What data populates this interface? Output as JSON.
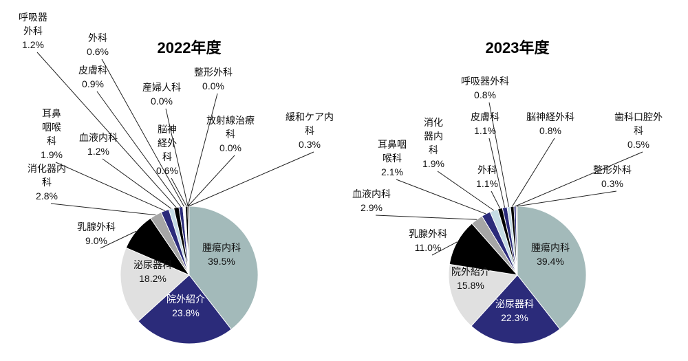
{
  "chart_data": [
    {
      "type": "pie",
      "title": "2022年度",
      "categories": [
        "腫瘍内科",
        "院外紹介",
        "泌尿器科",
        "乳腺外科",
        "消化器内科",
        "耳鼻咽喉科",
        "血液内科",
        "呼吸器外科",
        "皮膚科",
        "外科",
        "脳神経外科",
        "産婦人科",
        "整形外科",
        "放射線治療科",
        "緩和ケア内科"
      ],
      "values": [
        39.5,
        23.8,
        18.2,
        9.0,
        2.8,
        1.9,
        1.2,
        1.2,
        0.9,
        0.6,
        0.6,
        0.0,
        0.0,
        0.0,
        0.3
      ],
      "value_labels": [
        "39.5%",
        "23.8%",
        "18.2%",
        "9.0%",
        "2.8%",
        "1.9%",
        "1.2%",
        "1.2%",
        "0.9%",
        "0.6%",
        "0.6%",
        "0.0%",
        "0.0%",
        "0.0%",
        "0.3%"
      ],
      "colors": [
        "#a3baba",
        "#2b2b7a",
        "#e0e0e0",
        "#000000",
        "#a6a6a6",
        "#2b2b7a",
        "#c5dbe4",
        "#000000",
        "#2b2b7a",
        "#ffffff",
        "#000000",
        "#a6a6a6",
        "#2b2b7a",
        "#c5dbe4",
        "#000000"
      ]
    },
    {
      "type": "pie",
      "title": "2023年度",
      "categories": [
        "腫瘍内科",
        "泌尿器科",
        "院外紹介",
        "乳腺外科",
        "血液内科",
        "耳鼻咽喉科",
        "消化器内科",
        "外科",
        "皮膚科",
        "呼吸器外科",
        "脳神経外科",
        "歯科口腔外科",
        "整形外科"
      ],
      "values": [
        39.4,
        22.3,
        15.8,
        11.0,
        2.9,
        2.1,
        1.9,
        1.1,
        1.1,
        0.8,
        0.8,
        0.5,
        0.3
      ],
      "value_labels": [
        "39.4%",
        "22.3%",
        "15.8%",
        "11.0%",
        "2.9%",
        "2.1%",
        "1.9%",
        "1.1%",
        "1.1%",
        "0.8%",
        "0.8%",
        "0.5%",
        "0.3%"
      ],
      "colors": [
        "#a3baba",
        "#2b2b7a",
        "#e0e0e0",
        "#000000",
        "#a6a6a6",
        "#2b2b7a",
        "#c5dbe4",
        "#000000",
        "#2b2b7a",
        "#c5dbe4",
        "#000000",
        "#2b2b7a",
        "#a6a6a6"
      ]
    }
  ]
}
